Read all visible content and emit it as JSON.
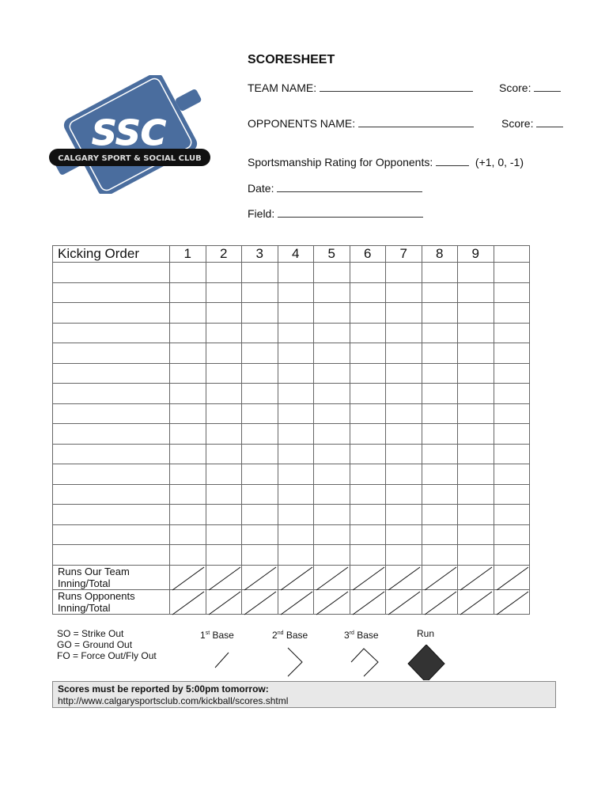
{
  "logo": {
    "text": "CALGARY SPORT & SOCIAL CLUB",
    "monogram": "SSC",
    "color": "#4a6d9e"
  },
  "header": {
    "title": "SCORESHEET",
    "team_name_label": "TEAM NAME:",
    "score_label": "Score:",
    "opponents_name_label": "OPPONENTS NAME:",
    "opponent_score_label": "Score:",
    "sportsmanship_label": "Sportsmanship Rating for Opponents:",
    "sportsmanship_options": "(+1, 0, -1)",
    "date_label": "Date:",
    "field_label": "Field:"
  },
  "table": {
    "first_header": "Kicking Order",
    "innings": [
      "1",
      "2",
      "3",
      "4",
      "5",
      "6",
      "7",
      "8",
      "9",
      ""
    ],
    "empty_rows": 15,
    "runs_rows": [
      {
        "line1": "Runs Our Team",
        "line2": "Inning/Total"
      },
      {
        "line1": "Runs Opponents",
        "line2": "Inning/Total"
      }
    ]
  },
  "legend": {
    "abbreviations": [
      "SO = Strike Out",
      "GO = Ground Out",
      "FO = Force Out/Fly Out"
    ],
    "bases": [
      {
        "num": "1",
        "sup": "st",
        "label": " Base"
      },
      {
        "num": "2",
        "sup": "nd",
        "label": " Base"
      },
      {
        "num": "3",
        "sup": "rd",
        "label": " Base"
      }
    ],
    "run_label": "Run"
  },
  "notice": {
    "heading": "Scores must be reported by 5:00pm tomorrow:",
    "url": "http://www.calgarysportsclub.com/kickball/scores.shtml"
  }
}
